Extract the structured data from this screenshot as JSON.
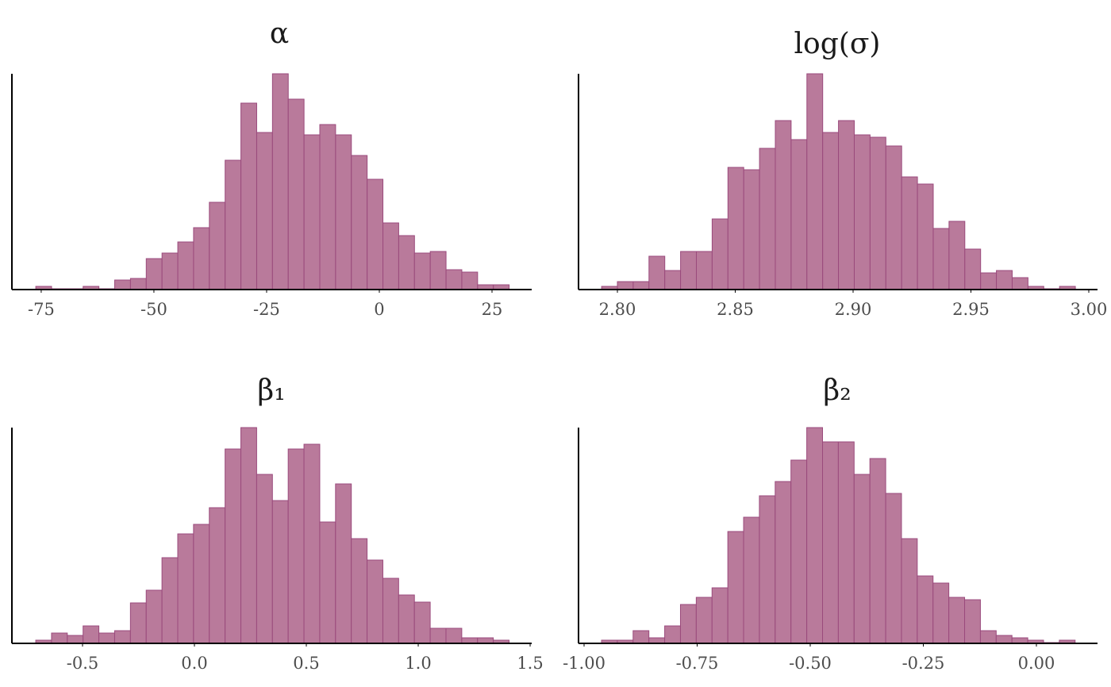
{
  "chart_data": [
    {
      "type": "histogram",
      "title": "α",
      "color": "#b97a9b",
      "edgecolor": "#9a4a7c",
      "bins": [
        -76.2,
        -72.7,
        -69.2,
        -65.7,
        -62.2,
        -58.7,
        -55.2,
        -51.7,
        -48.2,
        -44.7,
        -41.2,
        -37.7,
        -34.2,
        -30.7,
        -27.2,
        -23.7,
        -20.2,
        -16.7,
        -13.2,
        -9.7,
        -6.2,
        -2.7,
        0.8,
        4.3,
        7.8,
        11.3,
        14.8,
        18.3,
        21.8,
        25.3,
        28.8
      ],
      "values": [
        4,
        1,
        1,
        4,
        1,
        12,
        14,
        39,
        46,
        60,
        78,
        110,
        163,
        235,
        198,
        272,
        240,
        195,
        208,
        195,
        169,
        139,
        84,
        68,
        46,
        48,
        25,
        22,
        6,
        6
      ],
      "xlim": [
        -81.5,
        33.8
      ],
      "xticks": [
        -75,
        -50,
        -25,
        0,
        25
      ]
    },
    {
      "type": "histogram",
      "title": "log(σ)",
      "color": "#b97a9b",
      "edgecolor": "#9a4a7c",
      "bins": [
        2.7933,
        2.8,
        2.8067,
        2.8134,
        2.8201,
        2.8268,
        2.8335,
        2.8402,
        2.8469,
        2.8536,
        2.8603,
        2.867,
        2.8737,
        2.8804,
        2.8871,
        2.8938,
        2.9005,
        2.9072,
        2.9139,
        2.9206,
        2.9273,
        2.934,
        2.9407,
        2.9474,
        2.9541,
        2.9608,
        2.9675,
        2.9742,
        2.9809,
        2.9876,
        2.9943
      ],
      "values": [
        4,
        10,
        10,
        42,
        24,
        48,
        48,
        89,
        154,
        151,
        178,
        213,
        189,
        272,
        198,
        213,
        195,
        192,
        181,
        142,
        133,
        77,
        86,
        51,
        21,
        24,
        15,
        4,
        1,
        4
      ],
      "xlim": [
        2.7835,
        3.0037
      ],
      "xticks": [
        {
          "value": 2.8,
          "label": "2.80"
        },
        {
          "value": 2.85,
          "label": "2.85"
        },
        {
          "value": 2.9,
          "label": "2.90"
        },
        {
          "value": 2.95,
          "label": "2.95"
        },
        {
          "value": 3.0,
          "label": "3.00"
        }
      ]
    },
    {
      "type": "histogram",
      "title": "β₁",
      "color": "#b97a9b",
      "edgecolor": "#9a4a7c",
      "bins": [
        -0.709,
        -0.6385,
        -0.568,
        -0.4975,
        -0.427,
        -0.3565,
        -0.286,
        -0.2155,
        -0.145,
        -0.0745,
        -0.004,
        0.0665,
        0.137,
        0.2075,
        0.278,
        0.3485,
        0.419,
        0.4895,
        0.56,
        0.6305,
        0.701,
        0.7715,
        0.842,
        0.9125,
        0.983,
        1.0535,
        1.124,
        1.1945,
        1.265,
        1.3355,
        1.406
      ],
      "values": [
        4,
        13,
        10,
        22,
        13,
        16,
        51,
        67,
        108,
        138,
        150,
        171,
        245,
        272,
        213,
        180,
        245,
        251,
        153,
        201,
        132,
        105,
        82,
        61,
        52,
        19,
        19,
        7,
        7,
        4
      ],
      "xlim": [
        -0.8156,
        1.507
      ],
      "xticks": [
        -0.5,
        {
          "value": 0,
          "label": "0.0"
        },
        0.5,
        {
          "value": 1,
          "label": "1.0"
        },
        1.5
      ]
    },
    {
      "type": "histogram",
      "title": "β₂",
      "color": "#b97a9b",
      "edgecolor": "#9a4a7c",
      "bins": [
        -0.9614,
        -0.9265,
        -0.8916,
        -0.8567,
        -0.8218,
        -0.7869,
        -0.752,
        -0.7171,
        -0.6822,
        -0.6473,
        -0.6124,
        -0.5775,
        -0.5426,
        -0.5077,
        -0.4728,
        -0.4379,
        -0.403,
        -0.3681,
        -0.3332,
        -0.2983,
        -0.2634,
        -0.2285,
        -0.1936,
        -0.1587,
        -0.1238,
        -0.0889,
        -0.054,
        -0.0191,
        0.0158,
        0.0507,
        0.0856
      ],
      "values": [
        4,
        4,
        16,
        7,
        22,
        49,
        58,
        70,
        141,
        159,
        186,
        204,
        231,
        272,
        254,
        254,
        213,
        233,
        189,
        132,
        85,
        76,
        58,
        55,
        16,
        10,
        7,
        4,
        1,
        4
      ],
      "xlim": [
        -1.0123,
        0.1351
      ],
      "xticks": [
        {
          "value": -1,
          "label": "-1.00"
        },
        -0.75,
        {
          "value": -0.5,
          "label": "-0.50"
        },
        -0.25,
        {
          "value": 0,
          "label": "0.00"
        }
      ]
    }
  ]
}
